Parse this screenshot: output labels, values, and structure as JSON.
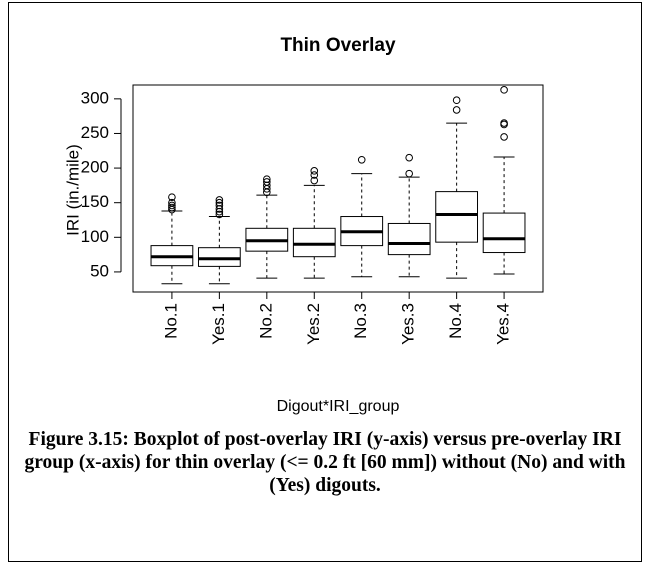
{
  "chart_data": {
    "type": "boxplot",
    "title": "Thin Overlay",
    "x_label": "Digout*IRI_group",
    "y_label": "IRI (in./mile)",
    "categories": [
      "No.1",
      "Yes.1",
      "No.2",
      "Yes.2",
      "No.3",
      "Yes.3",
      "No.4",
      "Yes.4"
    ],
    "whisker_low": [
      33,
      33,
      41,
      41,
      43,
      43,
      41,
      47
    ],
    "q1": [
      59,
      58,
      80,
      72,
      88,
      75,
      93,
      78
    ],
    "median": [
      72,
      69,
      95,
      90,
      108,
      91,
      133,
      98
    ],
    "q3": [
      88,
      85,
      113,
      113,
      130,
      120,
      166,
      135
    ],
    "whisker_high": [
      138,
      130,
      161,
      175,
      192,
      187,
      265,
      216
    ],
    "outliers": [
      [
        140,
        143,
        146,
        150,
        158
      ],
      [
        133,
        137,
        141,
        146,
        150,
        154
      ],
      [
        165,
        170,
        175,
        180,
        184
      ],
      [
        182,
        190,
        196
      ],
      [
        212
      ],
      [
        192,
        215
      ],
      [
        284,
        298
      ],
      [
        245,
        263,
        265,
        313
      ]
    ],
    "color": "#000000",
    "ylim": [
      21,
      320
    ],
    "yticks": [
      50,
      100,
      150,
      200,
      250,
      300
    ]
  },
  "caption": "Figure 3.15: Boxplot of post-overlay IRI (y-axis) versus pre-overlay IRI group (x-axis) for thin overlay (<= 0.2 ft [60 mm]) without (No) and with (Yes) digouts."
}
